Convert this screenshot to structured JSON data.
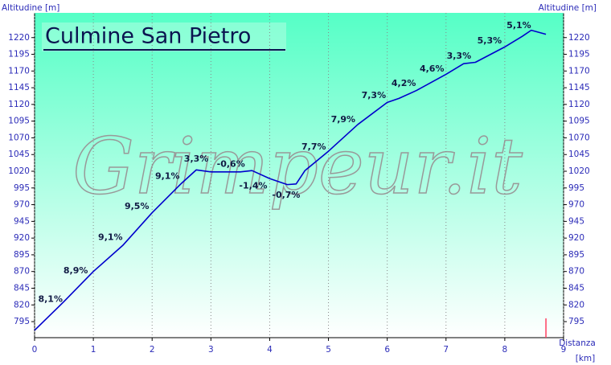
{
  "chart_data": {
    "type": "line",
    "title": "Culmine San Pietro",
    "watermark": "Grimpeur.it",
    "y_label": "Altitudine [m]",
    "y2_label": "Altitudine [m]",
    "x_label": "Distanza",
    "x_unit": "[km]",
    "x": [
      0,
      0.5,
      1.0,
      1.5,
      2.0,
      2.5,
      2.75,
      3.0,
      3.5,
      3.7,
      4.0,
      4.3,
      4.45,
      4.6,
      5.0,
      5.5,
      6.0,
      6.2,
      6.5,
      7.0,
      7.3,
      7.5,
      8.0,
      8.3,
      8.45,
      8.7
    ],
    "series": [
      {
        "color": "#0000cc",
        "values": [
          782,
          825,
          870,
          909,
          958,
          1002,
          1022,
          1019,
          1019,
          1021,
          1009,
          1000,
          1001,
          1021,
          1050,
          1090,
          1123,
          1129,
          1141,
          1165,
          1181,
          1183,
          1206,
          1222,
          1231,
          1225
        ]
      }
    ],
    "annotations": [
      {
        "text": "8,1%",
        "x": 0.27,
        "y": 828
      },
      {
        "text": "8,9%",
        "x": 0.7,
        "y": 871
      },
      {
        "text": "9,1%",
        "x": 1.29,
        "y": 921
      },
      {
        "text": "9,5%",
        "x": 1.74,
        "y": 967
      },
      {
        "text": "9,1%",
        "x": 2.26,
        "y": 1012
      },
      {
        "text": "3,3%",
        "x": 2.75,
        "y": 1038
      },
      {
        "text": "-0,6%",
        "x": 3.34,
        "y": 1030
      },
      {
        "text": "-1,4%",
        "x": 3.72,
        "y": 998
      },
      {
        "text": "-0,7%",
        "x": 4.28,
        "y": 984
      },
      {
        "text": "7,7%",
        "x": 4.75,
        "y": 1056
      },
      {
        "text": "7,9%",
        "x": 5.25,
        "y": 1097
      },
      {
        "text": "7,3%",
        "x": 5.77,
        "y": 1133
      },
      {
        "text": "4,2%",
        "x": 6.28,
        "y": 1151
      },
      {
        "text": "4,6%",
        "x": 6.76,
        "y": 1173
      },
      {
        "text": "3,3%",
        "x": 7.22,
        "y": 1192
      },
      {
        "text": "5,3%",
        "x": 7.74,
        "y": 1215
      },
      {
        "text": "5,1%",
        "x": 8.24,
        "y": 1238
      }
    ],
    "marker_x": 8.7,
    "marker_color": "#ff4060",
    "xlim": [
      0,
      9
    ],
    "xticks": [
      0,
      1,
      2,
      3,
      4,
      5,
      6,
      7,
      8,
      9
    ],
    "ylim": [
      771,
      1257
    ],
    "yticks": [
      795,
      820,
      845,
      870,
      895,
      920,
      945,
      970,
      995,
      1020,
      1045,
      1070,
      1095,
      1120,
      1145,
      1170,
      1195,
      1220
    ],
    "x_grid": true
  }
}
